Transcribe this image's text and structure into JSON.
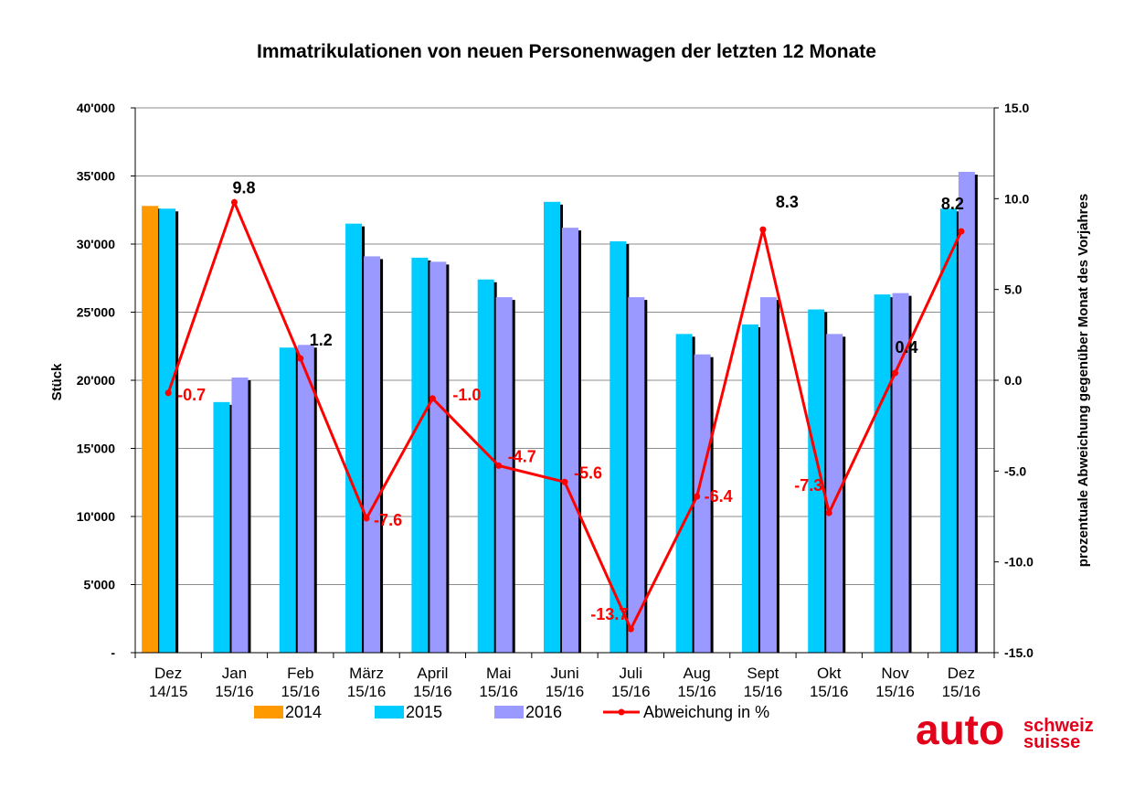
{
  "chart_data": {
    "type": "bar",
    "title": "Immatrikulationen von neuen Personenwagen der letzten 12 Monate",
    "ylabel": "Stück",
    "y2label": "prozentuale Abweichung gegenüber Monat des Vorjahres",
    "ylim": [
      0,
      40000
    ],
    "y2lim": [
      -15,
      15
    ],
    "y_ticks": [
      "-",
      "5'000",
      "10'000",
      "15'000",
      "20'000",
      "25'000",
      "30'000",
      "35'000",
      "40'000"
    ],
    "y2_ticks": [
      "-15.0",
      "-10.0",
      "-5.0",
      "0.0",
      "5.0",
      "10.0",
      "15.0"
    ],
    "categories": [
      [
        "Dez",
        "14/15"
      ],
      [
        "Jan",
        "15/16"
      ],
      [
        "Feb",
        "15/16"
      ],
      [
        "März",
        "15/16"
      ],
      [
        "April",
        "15/16"
      ],
      [
        "Mai",
        "15/16"
      ],
      [
        "Juni",
        "15/16"
      ],
      [
        "Juli",
        "15/16"
      ],
      [
        "Aug",
        "15/16"
      ],
      [
        "Sept",
        "15/16"
      ],
      [
        "Okt",
        "15/16"
      ],
      [
        "Nov",
        "15/16"
      ],
      [
        "Dez",
        "15/16"
      ]
    ],
    "series": [
      {
        "name": "2014",
        "color": "#FF9900",
        "values": [
          32800,
          null,
          null,
          null,
          null,
          null,
          null,
          null,
          null,
          null,
          null,
          null,
          null
        ]
      },
      {
        "name": "2015",
        "color": "#00CCFF",
        "values": [
          32600,
          18400,
          22400,
          31500,
          29000,
          27400,
          33100,
          30200,
          23400,
          24100,
          25200,
          26300,
          32600
        ]
      },
      {
        "name": "2016",
        "color": "#9999FF",
        "values": [
          null,
          20200,
          22600,
          29100,
          28700,
          26100,
          31200,
          26100,
          21900,
          26100,
          23400,
          26400,
          35300
        ]
      }
    ],
    "line": {
      "name": "Abweichung in %",
      "color": "#FF0000",
      "axis": "right",
      "values": [
        -0.7,
        9.8,
        1.2,
        -7.6,
        -1.0,
        -4.7,
        -5.6,
        -13.7,
        -6.4,
        8.3,
        -7.3,
        0.4,
        8.2
      ],
      "labels": [
        "-0.7",
        "9.8",
        "1.2",
        "-7.6",
        "-1.0",
        "-4.7",
        "-5.6",
        "-13.7",
        "-6.4",
        "8.3",
        "-7.3",
        "0.4",
        "8.2"
      ],
      "label_colors": [
        "#FF0000",
        "#000000",
        "#000000",
        "#FF0000",
        "#FF0000",
        "#FF0000",
        "#FF0000",
        "#FF0000",
        "#FF0000",
        "#000000",
        "#FF0000",
        "#000000",
        "#000000"
      ]
    },
    "legend_position": "bottom",
    "grid": true
  },
  "logo": {
    "main": "auto",
    "line1": "schweiz",
    "line2": "suisse",
    "color": "#E2001A"
  }
}
